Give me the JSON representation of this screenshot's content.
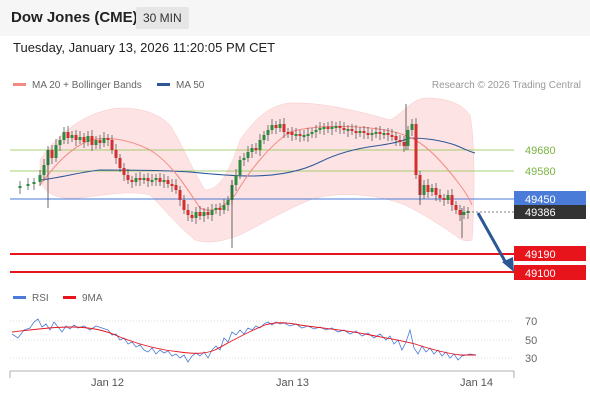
{
  "header": {
    "title": "Dow Jones (CME)",
    "timeframe": "30 MIN"
  },
  "timestamp": "Tuesday, January 13, 2026 11:20:05 PM CET",
  "legend": {
    "ma20": "MA 20 + Bollinger Bands",
    "ma50": "MA 50",
    "rsi": "RSI",
    "ma9": "9MA"
  },
  "research": "Research © 2026 Trading Central",
  "colors": {
    "ma20": "#f28b82",
    "ma50": "#2b5797",
    "band": "#fde3e3",
    "up": "#2e8b3e",
    "down": "#d32f2f",
    "resistance": "#8bc34a",
    "pivot": "#4a7bd8",
    "support": "#e8141c",
    "rsi": "#4a7bd8",
    "rsi_ma": "#e8141c"
  },
  "levels": [
    {
      "label": "49680",
      "kind": "resistance"
    },
    {
      "label": "49580",
      "kind": "resistance"
    },
    {
      "label": "49450",
      "kind": "pivot"
    },
    {
      "label": "49386",
      "kind": "last"
    },
    {
      "label": "49190",
      "kind": "support"
    },
    {
      "label": "49100",
      "kind": "support"
    }
  ],
  "rsi_ticks": [
    "70",
    "50",
    "30"
  ],
  "x_axis": [
    "Jan 12",
    "Jan 13",
    "Jan 14"
  ]
}
